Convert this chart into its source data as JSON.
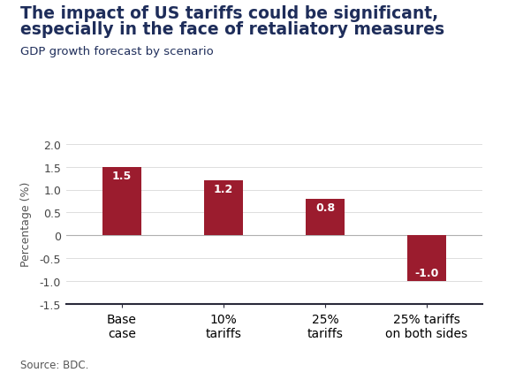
{
  "title_line1": "The impact of US tariffs could be significant,",
  "title_line2": "especially in the face of retaliatory measures",
  "subtitle": "GDP growth forecast by scenario",
  "categories": [
    "Base\ncase",
    "10%\ntariffs",
    "25%\ntariffs",
    "25% tariffs\non both sides"
  ],
  "values": [
    1.5,
    1.2,
    0.8,
    -1.0
  ],
  "bar_color": "#9b1c2e",
  "bar_labels": [
    "1.5",
    "1.2",
    "0.8",
    "-1.0"
  ],
  "ylabel": "Percentage (%)",
  "ylim": [
    -1.5,
    2.0
  ],
  "yticks": [
    -1.5,
    -1.0,
    -0.5,
    0.0,
    0.5,
    1.0,
    1.5,
    2.0
  ],
  "ytick_labels": [
    "-1.5",
    "-1.0",
    "-0.5",
    "0",
    "0.5",
    "1.0",
    "1.5",
    "2.0"
  ],
  "source": "Source: BDC.",
  "background_color": "#ffffff",
  "title_color": "#1e2d5a",
  "subtitle_color": "#1e2d5a",
  "label_color": "#ffffff",
  "grid_color": "#d8d8d8",
  "zero_line_color": "#b0b0b0",
  "bottom_spine_color": "#2a2a3a",
  "title_fontsize": 13.5,
  "subtitle_fontsize": 9.5,
  "label_fontsize": 9,
  "tick_fontsize": 9,
  "ylabel_fontsize": 9,
  "source_fontsize": 8.5,
  "bar_width": 0.38
}
